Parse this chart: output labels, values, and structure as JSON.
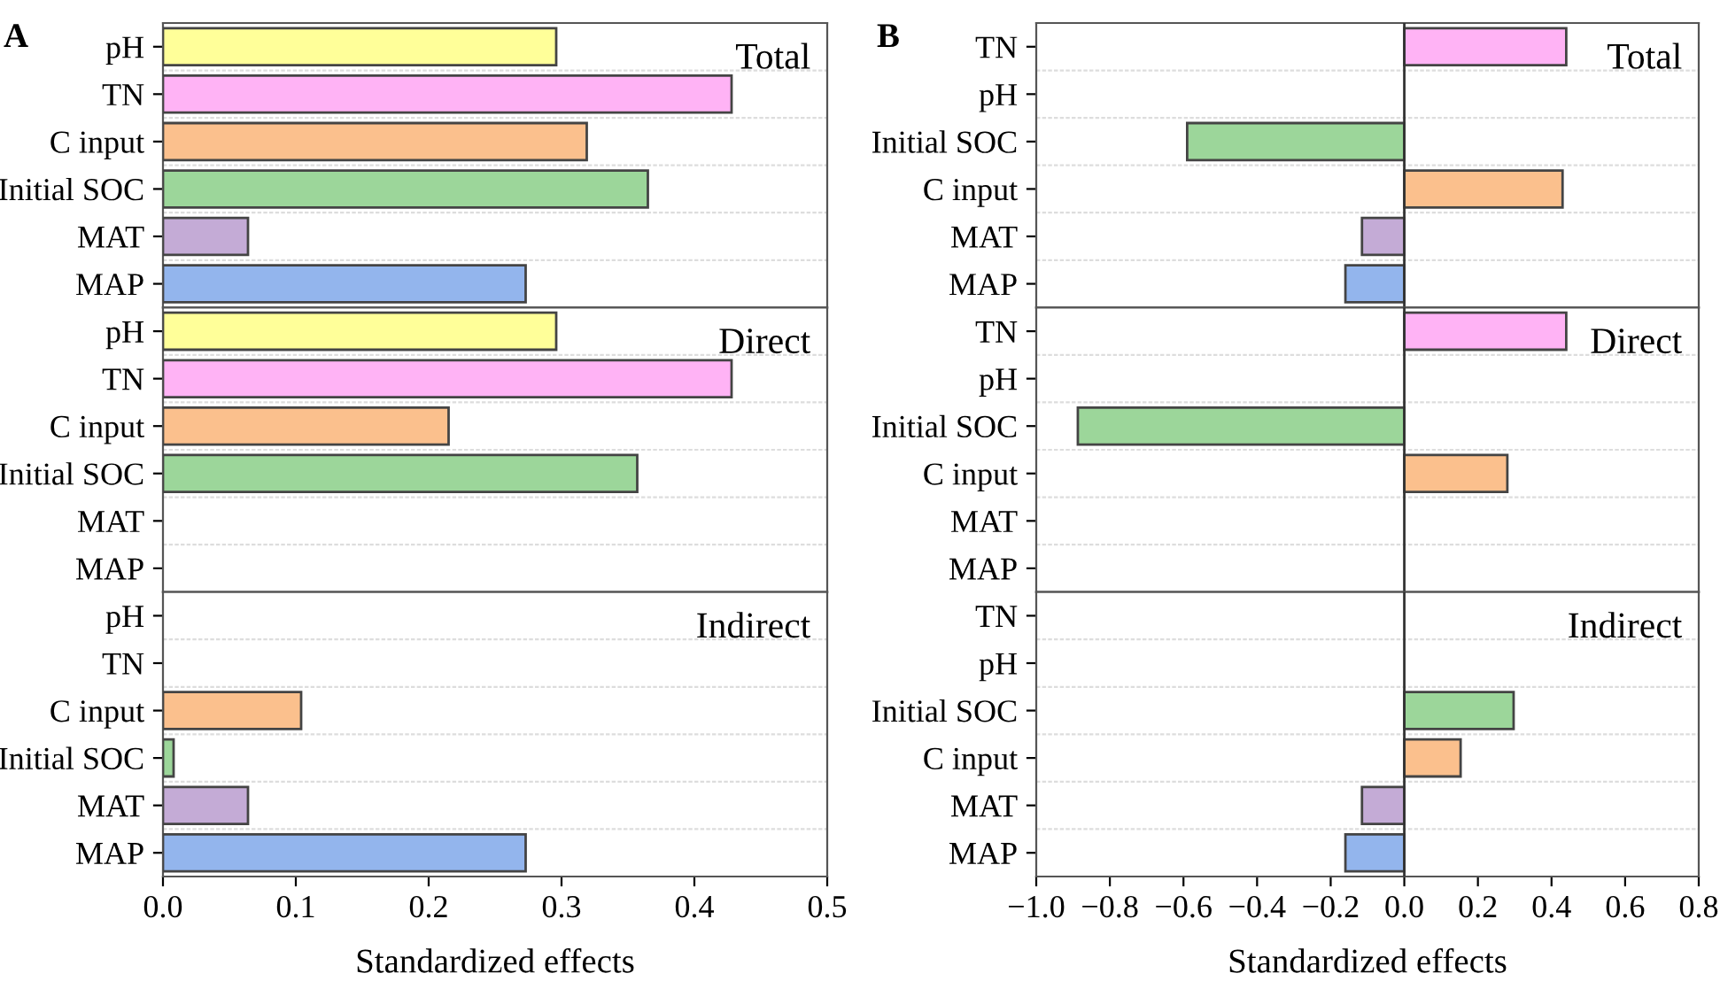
{
  "chart_data": [
    {
      "type": "bar",
      "orientation": "horizontal",
      "title": "A",
      "annotations": [
        "Total"
      ],
      "categories": [
        "pH",
        "TN",
        "C input",
        "Initial SOC",
        "MAT",
        "MAP"
      ],
      "values": [
        0.296,
        0.428,
        0.319,
        0.365,
        0.064,
        0.273
      ],
      "colors": [
        "#ffff99",
        "#ffb3f5",
        "#fbc08d",
        "#9cd69a",
        "#c4abd6",
        "#93b5ed"
      ],
      "xlim": [
        0,
        0.5
      ],
      "xticks": [
        0,
        0.1,
        0.2,
        0.3,
        0.4,
        0.5
      ],
      "tick_labels": "y",
      "grid": "y"
    },
    {
      "type": "bar",
      "orientation": "horizontal",
      "annotations": [
        "Direct"
      ],
      "categories": [
        "pH",
        "TN",
        "C input",
        "Initial SOC",
        "MAT",
        "MAP"
      ],
      "values": [
        0.296,
        0.428,
        0.215,
        0.357,
        null,
        null
      ],
      "colors": [
        "#ffff99",
        "#ffb3f5",
        "#fbc08d",
        "#9cd69a",
        "#c4abd6",
        "#93b5ed"
      ],
      "xlim": [
        0,
        0.5
      ],
      "xticks": [
        0,
        0.1,
        0.2,
        0.3,
        0.4,
        0.5
      ],
      "tick_labels": "y",
      "grid": "y"
    },
    {
      "type": "bar",
      "orientation": "horizontal",
      "annotations": [
        "Indirect"
      ],
      "xlabel": "Standardized effects",
      "categories": [
        "pH",
        "TN",
        "C input",
        "Initial SOC",
        "MAT",
        "MAP"
      ],
      "values": [
        null,
        null,
        0.104,
        0.008,
        0.064,
        0.273
      ],
      "colors": [
        "#ffff99",
        "#ffb3f5",
        "#fbc08d",
        "#9cd69a",
        "#c4abd6",
        "#93b5ed"
      ],
      "xlim": [
        0,
        0.5
      ],
      "xticks": [
        {
          "value": 0,
          "label": "0.0"
        },
        0.1,
        0.2,
        0.3,
        0.4,
        0.5
      ],
      "grid": "y"
    },
    {
      "type": "bar",
      "orientation": "horizontal",
      "title": "B",
      "annotations": [
        "Total"
      ],
      "categories": [
        "TN",
        "pH",
        "Initial SOC",
        "C input",
        "MAT",
        "MAP"
      ],
      "values": [
        0.44,
        null,
        -0.59,
        0.43,
        -0.115,
        -0.16
      ],
      "colors": [
        "#ffb3f5",
        "#ffff99",
        "#9cd69a",
        "#fbc08d",
        "#c4abd6",
        "#93b5ed"
      ],
      "xlim": [
        -1,
        0.8
      ],
      "xticks": [
        -1,
        -0.8,
        -0.6,
        -0.4,
        -0.2,
        0,
        0.2,
        0.4,
        0.6,
        0.8
      ],
      "tick_labels": "y",
      "grid": "y",
      "ref_lines": [
        {
          "axis": "x",
          "value": 0,
          "color": "#333333"
        }
      ]
    },
    {
      "type": "bar",
      "orientation": "horizontal",
      "annotations": [
        "Direct"
      ],
      "categories": [
        "TN",
        "pH",
        "Initial SOC",
        "C input",
        "MAT",
        "MAP"
      ],
      "values": [
        0.44,
        null,
        -0.887,
        0.28,
        null,
        null
      ],
      "colors": [
        "#ffb3f5",
        "#ffff99",
        "#9cd69a",
        "#fbc08d",
        "#c4abd6",
        "#93b5ed"
      ],
      "xlim": [
        -1,
        0.8
      ],
      "xticks": [
        -1,
        -0.8,
        -0.6,
        -0.4,
        -0.2,
        0,
        0.2,
        0.4,
        0.6,
        0.8
      ],
      "tick_labels": "y",
      "grid": "y",
      "ref_lines": [
        {
          "axis": "x",
          "value": 0,
          "color": "#333333"
        }
      ]
    },
    {
      "type": "bar",
      "orientation": "horizontal",
      "annotations": [
        "Indirect"
      ],
      "xlabel": "Standardized effects",
      "categories": [
        "TN",
        "pH",
        "Initial SOC",
        "C input",
        "MAT",
        "MAP"
      ],
      "values": [
        null,
        null,
        0.297,
        0.153,
        -0.115,
        -0.16
      ],
      "colors": [
        "#ffb3f5",
        "#ffff99",
        "#9cd69a",
        "#fbc08d",
        "#c4abd6",
        "#93b5ed"
      ],
      "xlim": [
        -1,
        0.8
      ],
      "xticks": [
        {
          "value": -1,
          "label": "−1.0"
        },
        {
          "value": -0.8,
          "label": "−0.8"
        },
        {
          "value": -0.6,
          "label": "−0.6"
        },
        {
          "value": -0.4,
          "label": "−0.4"
        },
        {
          "value": -0.2,
          "label": "−0.2"
        },
        {
          "value": 0,
          "label": "0.0"
        },
        0.2,
        0.4,
        0.6,
        0.8
      ],
      "grid": "y",
      "ref_lines": [
        {
          "axis": "x",
          "value": 0,
          "color": "#333333"
        }
      ]
    }
  ]
}
